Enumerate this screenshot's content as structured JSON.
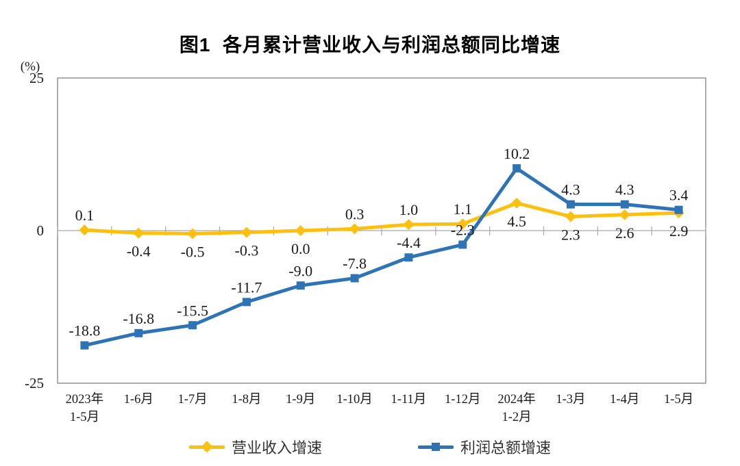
{
  "title": "图1  各月累计营业收入与利润总额同比增速",
  "unit_label": "(%)",
  "chart_data": {
    "type": "line",
    "title": "图1  各月累计营业收入与利润总额同比增速",
    "xlabel": "",
    "ylabel": "(%)",
    "ylim": [
      -25,
      25
    ],
    "y_ticks": [
      25,
      0,
      -25
    ],
    "grid": false,
    "legend_position": "bottom",
    "categories": [
      "2023年\n1-5月",
      "1-6月",
      "1-7月",
      "1-8月",
      "1-9月",
      "1-10月",
      "1-11月",
      "1-12月",
      "2024年\n1-2月",
      "1-3月",
      "1-4月",
      "1-5月"
    ],
    "series": [
      {
        "name": "营业收入增速",
        "color": "#FDC00E",
        "marker": "diamond",
        "values": [
          0.1,
          -0.4,
          -0.5,
          -0.3,
          0.0,
          0.3,
          1.0,
          1.1,
          4.5,
          2.3,
          2.6,
          2.9
        ],
        "label_sides": [
          "above",
          "below",
          "below",
          "below",
          "below",
          "above",
          "above",
          "above",
          "below",
          "below",
          "below",
          "below"
        ]
      },
      {
        "name": "利润总额增速",
        "color": "#2E74B5",
        "marker": "square",
        "values": [
          -18.8,
          -16.8,
          -15.5,
          -11.7,
          -9.0,
          -7.8,
          -4.4,
          -2.3,
          10.2,
          4.3,
          4.3,
          3.4
        ],
        "label_sides": [
          "above",
          "above",
          "above",
          "above",
          "above",
          "above",
          "above",
          "above",
          "above",
          "above",
          "above",
          "above"
        ]
      }
    ]
  },
  "style": {
    "axis_color": "#808080",
    "zero_line_color": "#A6A6A6",
    "label_color": "#000000",
    "tick_label_color": "#1a1a1a"
  }
}
